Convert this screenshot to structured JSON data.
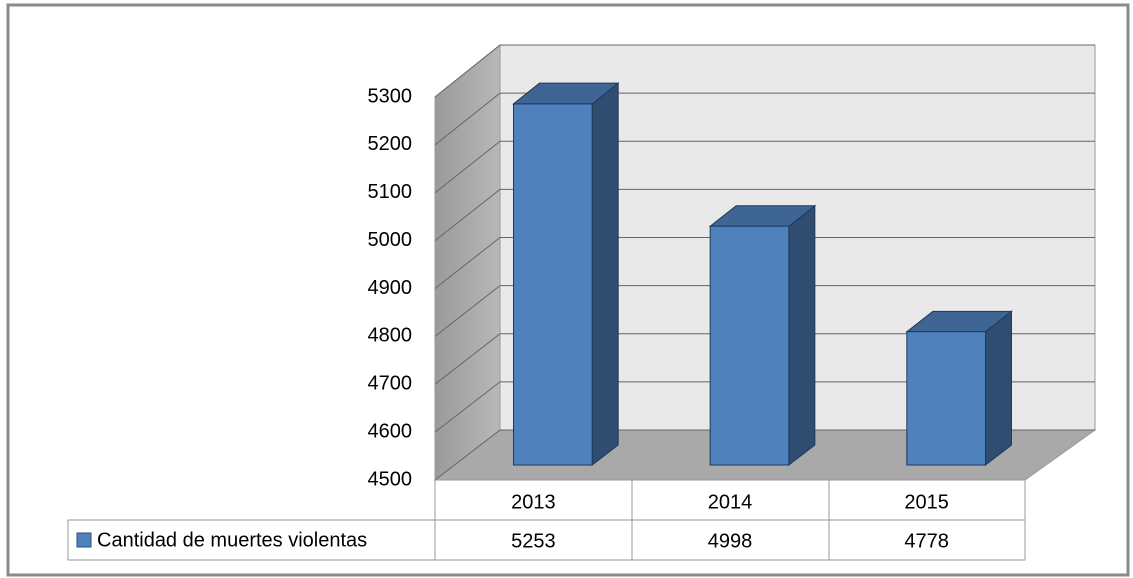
{
  "chart_data": {
    "type": "bar3d",
    "categories": [
      "2013",
      "2014",
      "2015"
    ],
    "series": [
      {
        "name": "Cantidad de muertes violentas",
        "color": "#4f81bd",
        "values": [
          5253,
          4998,
          4778
        ]
      }
    ],
    "ylim": [
      4500,
      5300
    ],
    "yticks": [
      4500,
      4600,
      4700,
      4800,
      4900,
      5000,
      5100,
      5200,
      5300
    ],
    "grid": true
  }
}
